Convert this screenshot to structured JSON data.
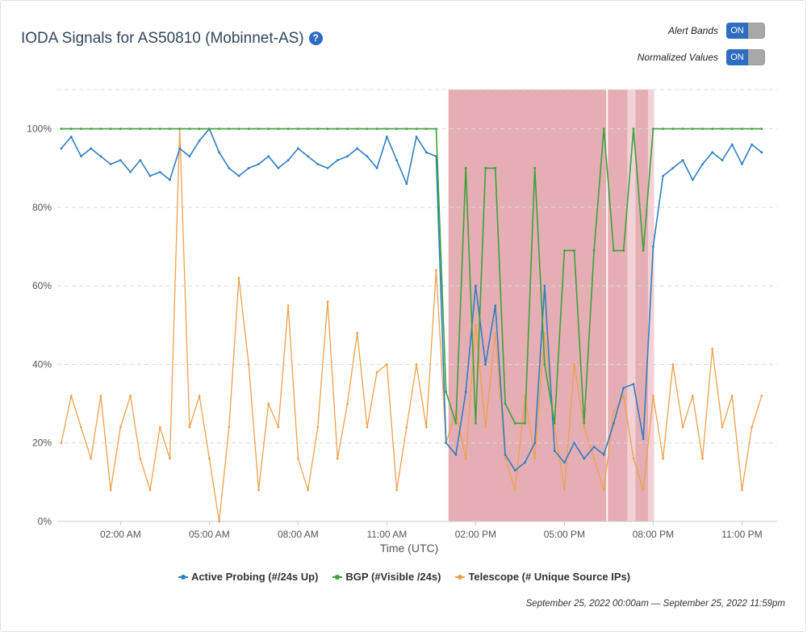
{
  "header": {
    "title": "IODA Signals for AS50810 (Mobinnet-AS)",
    "help_icon": "question-circle-icon"
  },
  "toggles": [
    {
      "label": "Alert Bands",
      "state": "ON"
    },
    {
      "label": "Normalized Values",
      "state": "ON"
    }
  ],
  "footer": {
    "date_range": "September 25, 2022 00:00am — September 25, 2022 11:59pm"
  },
  "chart_data": {
    "type": "line",
    "title": "",
    "xlabel": "Time (UTC)",
    "ylabel": "",
    "ylim": [
      0,
      110
    ],
    "xlim": [
      "00:00",
      "24:10"
    ],
    "grid": true,
    "legend_position": "bottom",
    "yticks": [
      {
        "value": 0,
        "label": "0%"
      },
      {
        "value": 20,
        "label": "20%"
      },
      {
        "value": 40,
        "label": "40%"
      },
      {
        "value": 60,
        "label": "60%"
      },
      {
        "value": 80,
        "label": "80%"
      },
      {
        "value": 100,
        "label": "100%"
      }
    ],
    "xticks": [
      {
        "time": "02:00",
        "label": "02:00 AM"
      },
      {
        "time": "05:00",
        "label": "05:00 AM"
      },
      {
        "time": "08:00",
        "label": "08:00 AM"
      },
      {
        "time": "11:00",
        "label": "11:00 AM"
      },
      {
        "time": "14:00",
        "label": "02:00 PM"
      },
      {
        "time": "17:00",
        "label": "05:00 PM"
      },
      {
        "time": "20:00",
        "label": "08:00 PM"
      },
      {
        "time": "23:00",
        "label": "11:00 PM"
      }
    ],
    "x": [
      "00:00",
      "00:20",
      "00:40",
      "01:00",
      "01:20",
      "01:40",
      "02:00",
      "02:20",
      "02:40",
      "03:00",
      "03:20",
      "03:40",
      "04:00",
      "04:20",
      "04:40",
      "05:00",
      "05:20",
      "05:40",
      "06:00",
      "06:20",
      "06:40",
      "07:00",
      "07:20",
      "07:40",
      "08:00",
      "08:20",
      "08:40",
      "09:00",
      "09:20",
      "09:40",
      "10:00",
      "10:20",
      "10:40",
      "11:00",
      "11:20",
      "11:40",
      "12:00",
      "12:20",
      "12:40",
      "13:00",
      "13:20",
      "13:40",
      "14:00",
      "14:20",
      "14:40",
      "15:00",
      "15:20",
      "15:40",
      "16:00",
      "16:20",
      "16:40",
      "17:00",
      "17:20",
      "17:40",
      "18:00",
      "18:20",
      "18:40",
      "19:00",
      "19:20",
      "19:40",
      "20:00",
      "20:20",
      "20:40",
      "21:00",
      "21:20",
      "21:40",
      "22:00",
      "22:20",
      "22:40",
      "23:00",
      "23:20",
      "23:40"
    ],
    "series": [
      {
        "name": "Active Probing (#/24s Up)",
        "color": "#2f7fc1",
        "values": [
          95,
          98,
          93,
          95,
          93,
          91,
          92,
          89,
          92,
          88,
          89,
          87,
          95,
          93,
          97,
          100,
          94,
          90,
          88,
          90,
          91,
          93,
          90,
          92,
          95,
          93,
          91,
          90,
          92,
          93,
          95,
          93,
          90,
          98,
          92,
          86,
          98,
          94,
          93,
          20,
          17,
          33,
          60,
          40,
          55,
          17,
          13,
          15,
          20,
          60,
          18,
          15,
          20,
          16,
          19,
          17,
          25,
          34,
          35,
          21,
          70,
          88,
          90,
          92,
          87,
          91,
          94,
          92,
          96,
          91,
          96,
          94
        ]
      },
      {
        "name": "BGP (#Visible /24s)",
        "color": "#3aa23a",
        "values": [
          100,
          100,
          100,
          100,
          100,
          100,
          100,
          100,
          100,
          100,
          100,
          100,
          100,
          100,
          100,
          100,
          100,
          100,
          100,
          100,
          100,
          100,
          100,
          100,
          100,
          100,
          100,
          100,
          100,
          100,
          100,
          100,
          100,
          100,
          100,
          100,
          100,
          100,
          100,
          33,
          25,
          90,
          25,
          90,
          90,
          30,
          25,
          25,
          90,
          40,
          25,
          69,
          69,
          25,
          69,
          100,
          69,
          69,
          100,
          69,
          100,
          100,
          100,
          100,
          100,
          100,
          100,
          100,
          100,
          100,
          100,
          100
        ]
      },
      {
        "name": "Telescope (# Unique Source IPs)",
        "color": "#f0a04b",
        "values": [
          20,
          32,
          24,
          16,
          32,
          8,
          24,
          32,
          16,
          8,
          24,
          16,
          100,
          24,
          32,
          16,
          0,
          24,
          62,
          40,
          8,
          30,
          24,
          55,
          16,
          8,
          24,
          56,
          16,
          30,
          48,
          24,
          38,
          40,
          8,
          24,
          40,
          24,
          64,
          20,
          28,
          16,
          50,
          24,
          48,
          16,
          8,
          32,
          16,
          48,
          24,
          8,
          40,
          24,
          16,
          8,
          28,
          32,
          16,
          8,
          32,
          16,
          40,
          24,
          32,
          16,
          44,
          24,
          32,
          8,
          24,
          32
        ]
      }
    ],
    "alert_bands": [
      {
        "start": "13:05",
        "end": "18:25",
        "color": "#e5aeb4"
      },
      {
        "start": "18:28",
        "end": "19:08",
        "color": "#e5aeb4"
      },
      {
        "start": "19:08",
        "end": "19:24",
        "color": "#f2d2d6"
      },
      {
        "start": "19:24",
        "end": "19:50",
        "color": "#e5aeb4"
      },
      {
        "start": "19:50",
        "end": "20:02",
        "color": "#f2d2d6"
      }
    ]
  }
}
